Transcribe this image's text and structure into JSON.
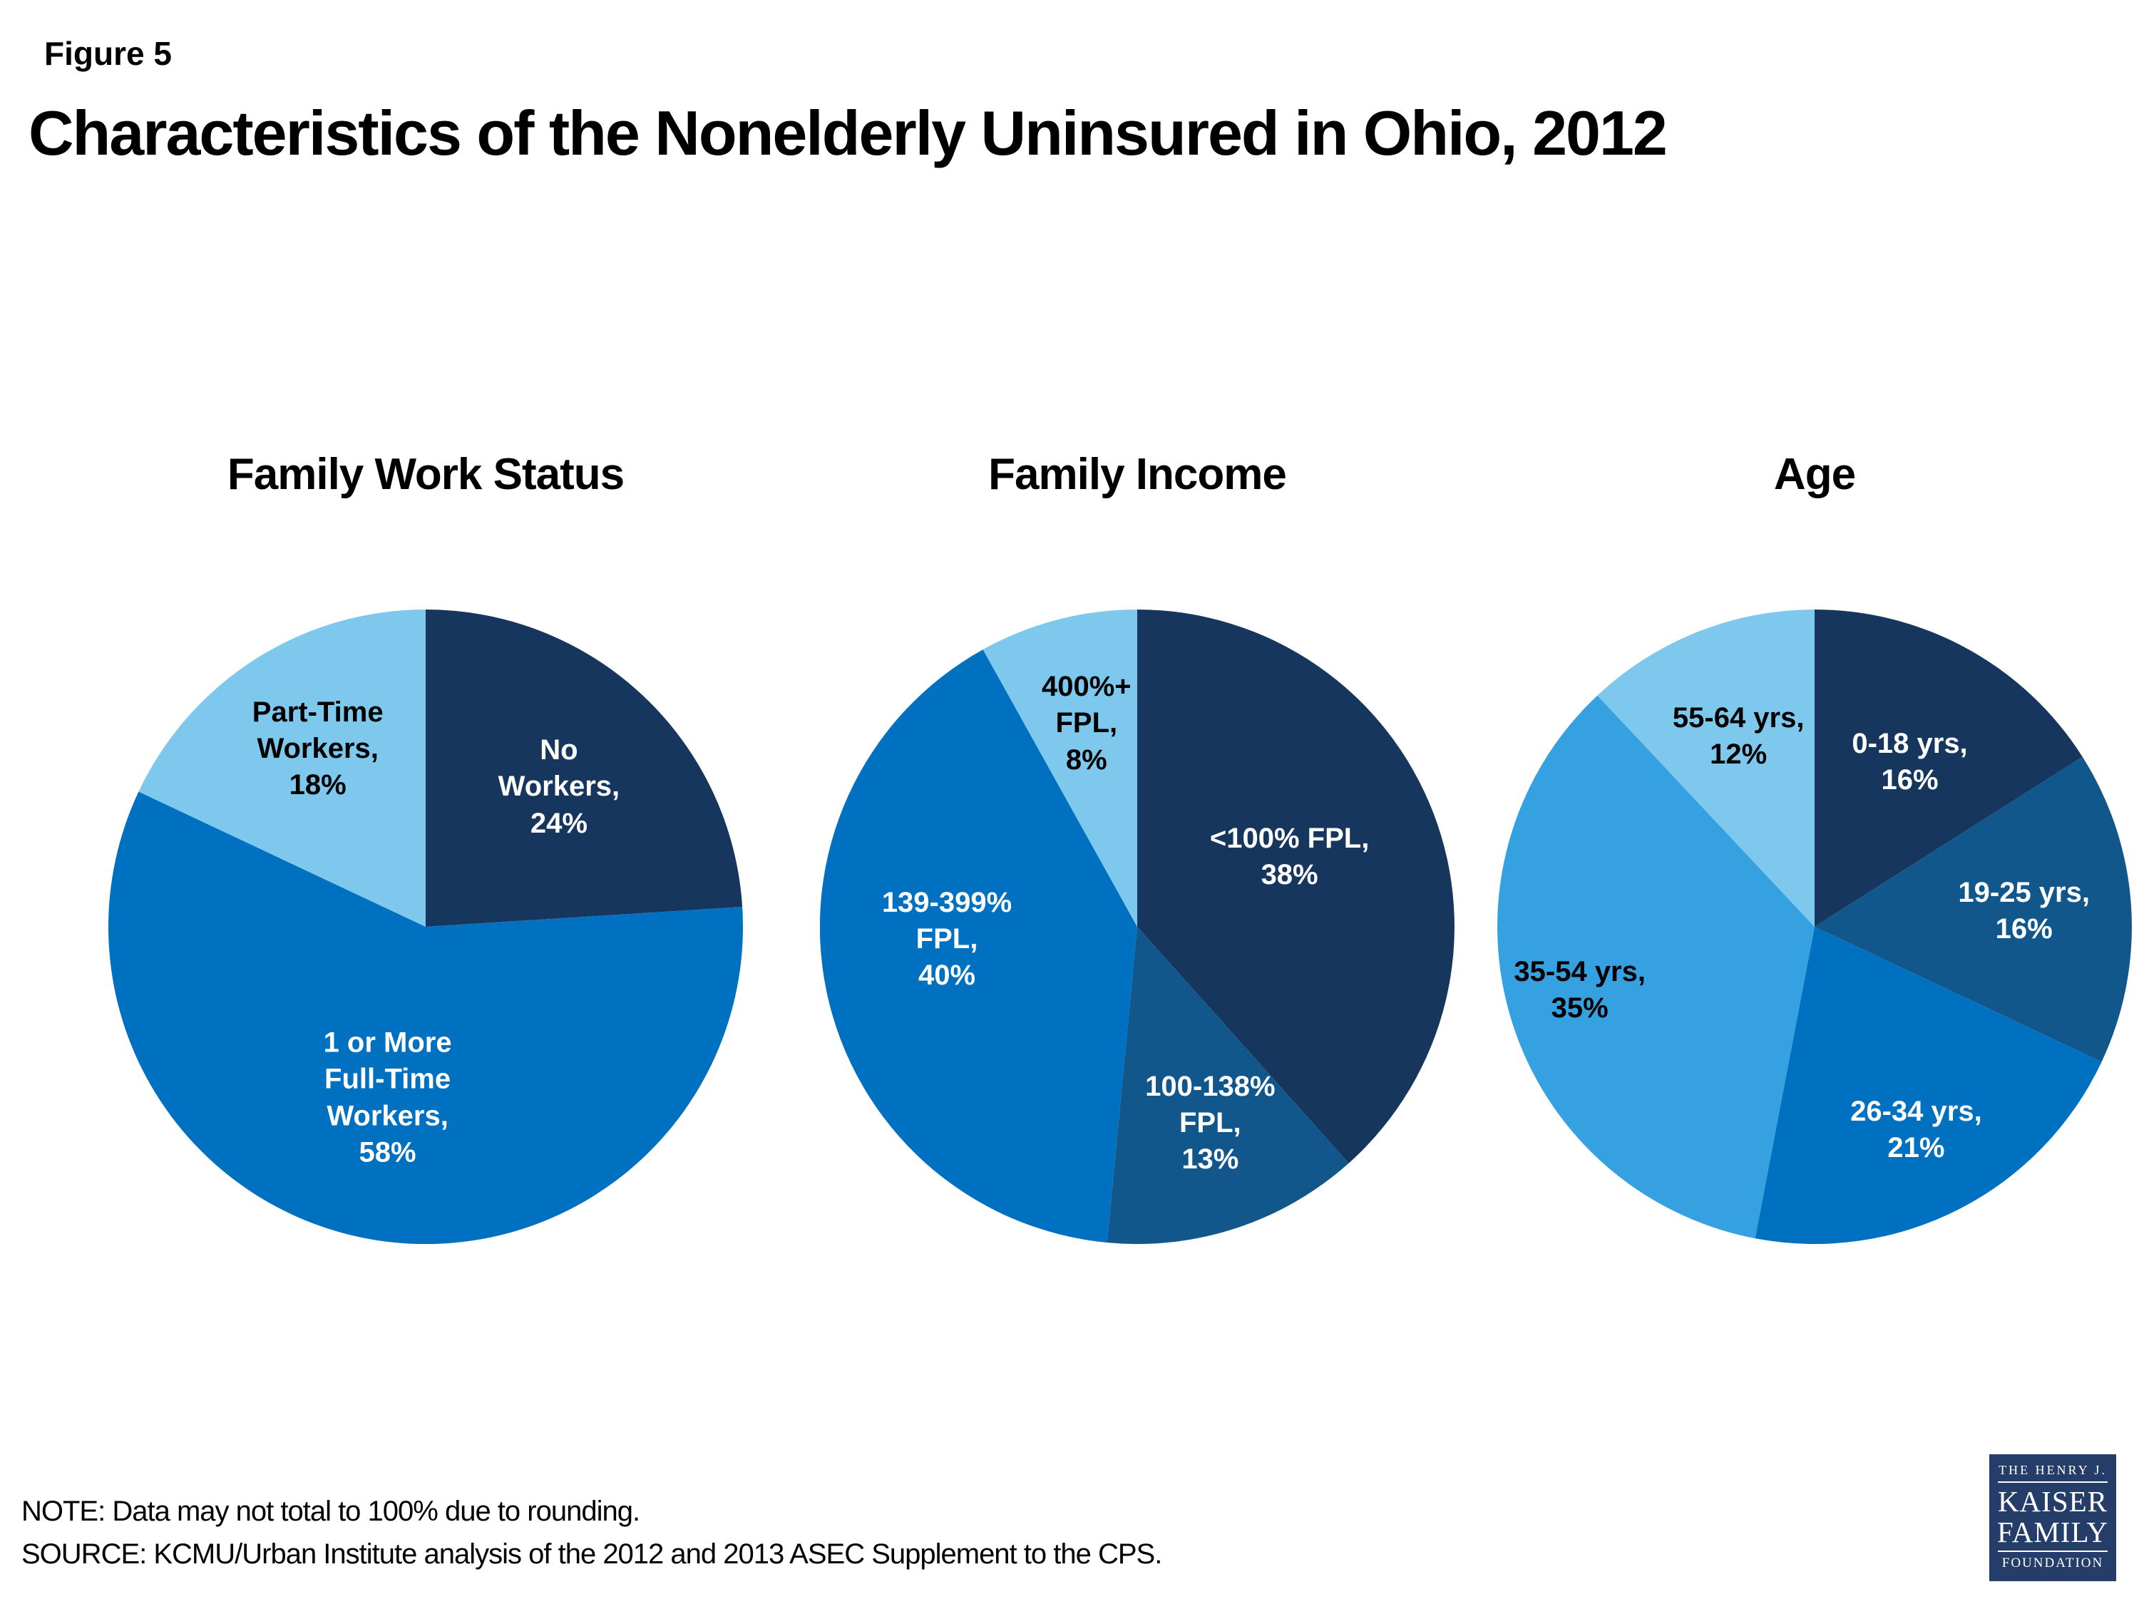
{
  "figure_label": "Figure 5",
  "title": "Characteristics of the Nonelderly Uninsured in Ohio, 2012",
  "note": "NOTE: Data may not total to 100% due to rounding.",
  "source": "SOURCE: KCMU/Urban Institute analysis of the 2012 and 2013 ASEC Supplement to the CPS.",
  "logo": {
    "line1": "THE HENRY J.",
    "line2": "KAISER",
    "line3": "FAMILY",
    "line4": "FOUNDATION",
    "background": "#243E69",
    "text_color": "#FFFFFF"
  },
  "palette": {
    "navy": "#17365D",
    "dark_blue": "#12578C",
    "medium_blue": "#0070C0",
    "sky_blue": "#35A1E0",
    "light_blue": "#7EC8EE"
  },
  "chart_data": [
    {
      "type": "pie",
      "title": "Family Work Status",
      "units": "percent",
      "start_angle_deg": 0,
      "direction": "clockwise",
      "legend": "none",
      "slices": [
        {
          "label": "No Workers",
          "value": 24,
          "display_lines": [
            "No",
            "Workers,",
            "24%"
          ],
          "color": "#17365D",
          "text_color": "#FFFFFF",
          "label_pos_pct": [
            71,
            28
          ]
        },
        {
          "label": "1 or More Full-Time Workers",
          "value": 58,
          "display_lines": [
            "1 or More",
            "Full-Time",
            "Workers,",
            "58%"
          ],
          "color": "#0070C0",
          "text_color": "#FFFFFF",
          "label_pos_pct": [
            44,
            77
          ]
        },
        {
          "label": "Part-Time Workers",
          "value": 18,
          "display_lines": [
            "Part-Time",
            "Workers,",
            "18%"
          ],
          "color": "#7EC8EE",
          "text_color": "#000000",
          "label_pos_pct": [
            33,
            22
          ]
        }
      ]
    },
    {
      "type": "pie",
      "title": "Family Income",
      "units": "percent",
      "start_angle_deg": 0,
      "direction": "clockwise",
      "legend": "none",
      "slices": [
        {
          "label": "<100% FPL",
          "value": 38,
          "display_lines": [
            "<100% FPL,",
            "38%"
          ],
          "color": "#17365D",
          "text_color": "#FFFFFF",
          "label_pos_pct": [
            74,
            39
          ]
        },
        {
          "label": "100-138% FPL",
          "value": 13,
          "display_lines": [
            "100-138%",
            "FPL,",
            "13%"
          ],
          "color": "#12578C",
          "text_color": "#FFFFFF",
          "label_pos_pct": [
            61.5,
            81
          ]
        },
        {
          "label": "139-399% FPL",
          "value": 40,
          "display_lines": [
            "139-399%",
            "FPL,",
            "40%"
          ],
          "color": "#0070C0",
          "text_color": "#FFFFFF",
          "label_pos_pct": [
            20,
            52
          ]
        },
        {
          "label": "400%+ FPL",
          "value": 8,
          "display_lines": [
            "400%+",
            "FPL,",
            "8%"
          ],
          "color": "#7EC8EE",
          "text_color": "#000000",
          "label_pos_pct": [
            42,
            18
          ]
        }
      ]
    },
    {
      "type": "pie",
      "title": "Age",
      "units": "percent",
      "start_angle_deg": 0,
      "direction": "clockwise",
      "legend": "none",
      "slices": [
        {
          "label": "0-18 yrs",
          "value": 16,
          "display_lines": [
            "0-18 yrs,",
            "16%"
          ],
          "color": "#17365D",
          "text_color": "#FFFFFF",
          "label_pos_pct": [
            65,
            24
          ]
        },
        {
          "label": "19-25 yrs",
          "value": 16,
          "display_lines": [
            "19-25 yrs,",
            "16%"
          ],
          "color": "#12578C",
          "text_color": "#FFFFFF",
          "label_pos_pct": [
            83,
            47.5
          ]
        },
        {
          "label": "26-34 yrs",
          "value": 21,
          "display_lines": [
            "26-34 yrs,",
            "21%"
          ],
          "color": "#0070C0",
          "text_color": "#FFFFFF",
          "label_pos_pct": [
            66,
            82
          ]
        },
        {
          "label": "35-54 yrs",
          "value": 35,
          "display_lines": [
            "35-54 yrs,",
            "35%"
          ],
          "color": "#35A1E0",
          "text_color": "#000000",
          "label_pos_pct": [
            13,
            60
          ]
        },
        {
          "label": "55-64 yrs",
          "value": 12,
          "display_lines": [
            "55-64 yrs,",
            "12%"
          ],
          "color": "#7EC8EE",
          "text_color": "#000000",
          "label_pos_pct": [
            38,
            20
          ]
        }
      ]
    }
  ]
}
